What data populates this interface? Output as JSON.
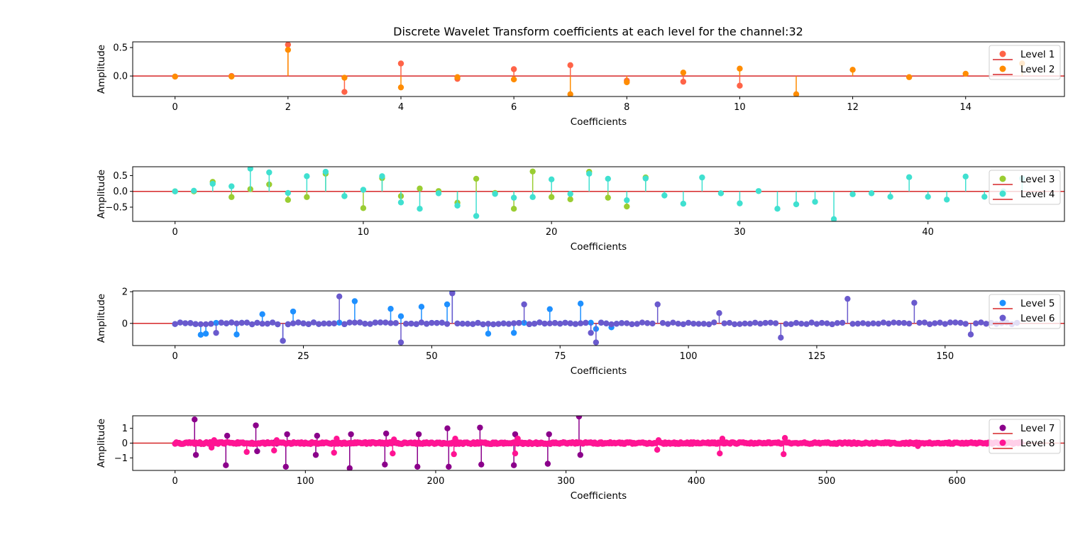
{
  "figure_title": "Discrete Wavelet Transform coefficients at each level for the channel:32",
  "baseline_color": "#d62728",
  "chart_data": [
    {
      "type": "scatter",
      "style": "stem",
      "xlabel": "Coefficients",
      "ylabel": "Amplitude",
      "xlim": [
        -0.75,
        15.75
      ],
      "ylim": [
        -0.36,
        0.6
      ],
      "xticks": [
        0,
        2,
        4,
        6,
        8,
        10,
        12,
        14
      ],
      "yticks": [
        0.0,
        0.5
      ],
      "ytick_labels": [
        "0.0",
        "0.5"
      ],
      "legend_position": "upper-right",
      "series": [
        {
          "name": "Level 1",
          "color": "#ff6347",
          "values": [
            -0.01,
            0.0,
            0.55,
            -0.28,
            0.22,
            -0.05,
            0.12,
            0.19,
            -0.08,
            -0.1,
            -0.17
          ]
        },
        {
          "name": "Level 2",
          "color": "#ff8c00",
          "values": [
            -0.01,
            -0.01,
            0.46,
            -0.03,
            -0.2,
            -0.02,
            -0.06,
            -0.32,
            -0.11,
            0.06,
            0.13,
            -0.32,
            0.11,
            -0.02,
            0.04,
            0.22
          ]
        }
      ]
    },
    {
      "type": "scatter",
      "style": "stem",
      "xlabel": "Coefficients",
      "ylabel": "Amplitude",
      "xlim": [
        -2.25,
        47.25
      ],
      "ylim": [
        -0.95,
        0.78
      ],
      "xticks": [
        0,
        10,
        20,
        30,
        40
      ],
      "yticks": [
        -0.5,
        0.0,
        0.5
      ],
      "ytick_labels": [
        "−0.5",
        "0.0",
        "0.5"
      ],
      "legend_position": "upper-right",
      "series": [
        {
          "name": "Level 3",
          "color": "#9acd32",
          "values": [
            0.0,
            0.0,
            0.3,
            -0.18,
            0.07,
            0.22,
            -0.27,
            -0.18,
            0.56,
            -0.15,
            -0.53,
            0.42,
            -0.15,
            0.09,
            0.01,
            -0.36,
            0.4,
            -0.05,
            -0.55,
            0.63,
            -0.18,
            -0.25,
            0.62,
            -0.2,
            -0.48,
            0.44
          ]
        },
        {
          "name": "Level 4",
          "color": "#40e0d0",
          "values": [
            0.0,
            0.02,
            0.24,
            0.16,
            0.72,
            0.6,
            -0.05,
            0.48,
            0.62,
            -0.15,
            0.05,
            0.48,
            -0.35,
            -0.55,
            -0.06,
            -0.45,
            -0.78,
            -0.08,
            -0.2,
            -0.18,
            0.38,
            -0.08,
            0.56,
            0.4,
            -0.28,
            0.41,
            -0.13,
            -0.39,
            0.44,
            -0.06,
            -0.38,
            0.01,
            -0.55,
            -0.41,
            -0.33,
            -0.88,
            -0.09,
            -0.06,
            -0.17,
            0.45,
            -0.17,
            -0.26,
            0.47,
            -0.17,
            0.0,
            0.41
          ]
        }
      ]
    },
    {
      "type": "scatter",
      "style": "stem",
      "xlabel": "Coefficients",
      "ylabel": "Amplitude",
      "xlim": [
        -8.25,
        173.25
      ],
      "ylim": [
        -1.4,
        2.05
      ],
      "xticks": [
        0,
        25,
        50,
        75,
        100,
        125,
        150
      ],
      "yticks": [
        0,
        2
      ],
      "ytick_labels": [
        "0",
        "2"
      ],
      "legend_position": "upper-right",
      "series": [
        {
          "name": "Level 5",
          "color": "#1e90ff",
          "count": 88,
          "spikes": [
            [
              5,
              -0.72
            ],
            [
              6,
              -0.65
            ],
            [
              12,
              -0.7
            ],
            [
              17,
              0.58
            ],
            [
              21,
              -1.1
            ],
            [
              23,
              0.75
            ],
            [
              35,
              1.4
            ],
            [
              42,
              0.92
            ],
            [
              44,
              0.45
            ],
            [
              48,
              1.05
            ],
            [
              53,
              1.2
            ],
            [
              54,
              1.95
            ],
            [
              61,
              -0.65
            ],
            [
              66,
              -0.6
            ],
            [
              73,
              0.9
            ],
            [
              79,
              1.25
            ],
            [
              82,
              -0.35
            ],
            [
              85,
              -0.25
            ]
          ]
        },
        {
          "name": "Level 6",
          "color": "#6a5acd",
          "count": 165,
          "spikes": [
            [
              8,
              -0.6
            ],
            [
              21,
              -1.1
            ],
            [
              32,
              1.7
            ],
            [
              44,
              -1.2
            ],
            [
              54,
              1.9
            ],
            [
              68,
              1.2
            ],
            [
              81,
              -0.6
            ],
            [
              82,
              -1.2
            ],
            [
              94,
              1.2
            ],
            [
              106,
              0.65
            ],
            [
              118,
              -0.9
            ],
            [
              131,
              1.55
            ],
            [
              144,
              1.3
            ],
            [
              155,
              -0.7
            ]
          ]
        }
      ]
    },
    {
      "type": "scatter",
      "style": "stem",
      "xlabel": "Coefficients",
      "ylabel": "Amplitude",
      "xlim": [
        -32.5,
        682.5
      ],
      "ylim": [
        -1.85,
        1.85
      ],
      "xticks": [
        0,
        100,
        200,
        300,
        400,
        500,
        600
      ],
      "yticks": [
        -1,
        0,
        1
      ],
      "ytick_labels": [
        "−1",
        "0",
        "1"
      ],
      "legend_position": "upper-right",
      "series": [
        {
          "name": "Level 7",
          "color": "#8b008b",
          "count": 325,
          "spikes": [
            [
              15,
              1.6
            ],
            [
              16,
              -0.8
            ],
            [
              39,
              -1.5
            ],
            [
              40,
              0.5
            ],
            [
              62,
              1.2
            ],
            [
              63,
              -0.55
            ],
            [
              85,
              -1.6
            ],
            [
              86,
              0.6
            ],
            [
              109,
              0.5
            ],
            [
              108,
              -0.8
            ],
            [
              134,
              -1.7
            ],
            [
              135,
              0.6
            ],
            [
              161,
              -1.45
            ],
            [
              162,
              0.65
            ],
            [
              186,
              -1.6
            ],
            [
              187,
              0.6
            ],
            [
              209,
              1.0
            ],
            [
              210,
              -1.6
            ],
            [
              234,
              1.05
            ],
            [
              235,
              -1.45
            ],
            [
              260,
              -1.5
            ],
            [
              261,
              0.6
            ],
            [
              286,
              -1.4
            ],
            [
              287,
              0.6
            ],
            [
              310,
              1.8
            ],
            [
              311,
              -0.8
            ]
          ]
        },
        {
          "name": "Level 8",
          "color": "#ff1493",
          "count": 650,
          "spikes": [
            [
              28,
              -0.3
            ],
            [
              30,
              0.2
            ],
            [
              55,
              -0.6
            ],
            [
              76,
              -0.5
            ],
            [
              78,
              0.2
            ],
            [
              122,
              -0.65
            ],
            [
              124,
              0.3
            ],
            [
              167,
              -0.7
            ],
            [
              168,
              0.25
            ],
            [
              214,
              -0.75
            ],
            [
              215,
              0.3
            ],
            [
              261,
              -0.7
            ],
            [
              263,
              0.3
            ],
            [
              370,
              -0.45
            ],
            [
              371,
              0.2
            ],
            [
              418,
              -0.7
            ],
            [
              420,
              0.3
            ],
            [
              467,
              -0.75
            ],
            [
              468,
              0.35
            ],
            [
              570,
              -0.2
            ]
          ]
        }
      ]
    }
  ]
}
